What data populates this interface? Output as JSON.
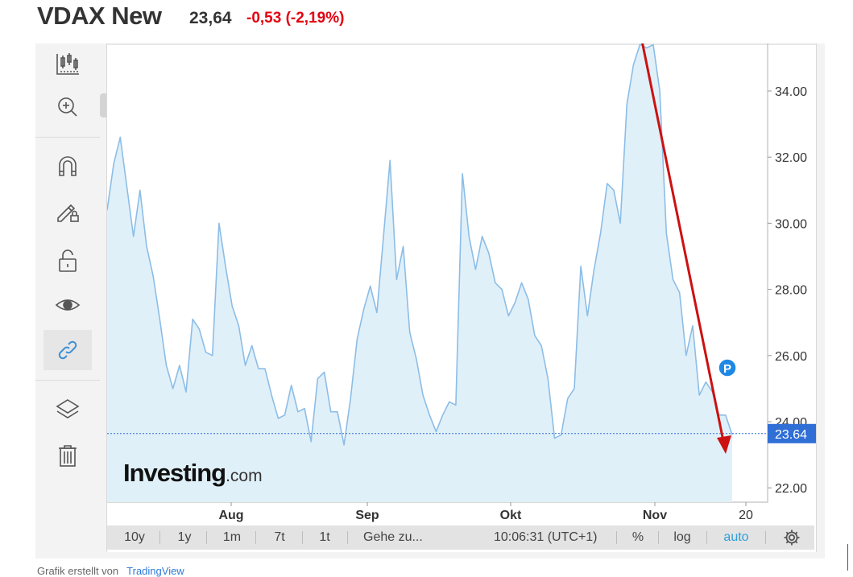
{
  "header": {
    "title": "VDAX New",
    "price": "23,64",
    "change": "-0,53 (-2,19%)",
    "change_color": "#e3000f"
  },
  "toolbar": {
    "tools": [
      {
        "name": "candlestick-chart-icon"
      },
      {
        "name": "zoom-icon"
      },
      {
        "name": "magnet-icon"
      },
      {
        "name": "pencil-lock-icon"
      },
      {
        "name": "unlock-icon"
      },
      {
        "name": "eye-icon"
      },
      {
        "name": "link-icon",
        "active": true
      },
      {
        "name": "layers-icon"
      },
      {
        "name": "trash-icon"
      }
    ]
  },
  "chart_data": {
    "type": "area",
    "x_ticks": [
      "Aug",
      "Sep",
      "Okt",
      "Nov",
      "20"
    ],
    "y_ticks": [
      "34.00",
      "32.00",
      "30.00",
      "28.00",
      "26.00",
      "24.00",
      "22.00"
    ],
    "ylim": [
      21.6,
      35.3
    ],
    "y_axis_position": "right",
    "grid": false,
    "current_value": 23.64,
    "current_label": "23.64",
    "watermark": "Investing",
    "watermark_suffix": ".com",
    "marker_label": "P",
    "line_color": "#8cbde6",
    "fill_color": "#e0f0f9",
    "current_color": "#2f6fd6",
    "arrow_color": "#cc1111",
    "values": [
      30.4,
      31.8,
      32.6,
      31.1,
      29.6,
      31.0,
      29.3,
      28.4,
      27.1,
      25.7,
      25.0,
      25.7,
      24.9,
      27.1,
      26.8,
      26.1,
      26.0,
      30.0,
      28.7,
      27.5,
      26.9,
      25.7,
      26.3,
      25.6,
      25.6,
      24.8,
      24.1,
      24.2,
      25.1,
      24.3,
      24.4,
      23.4,
      25.3,
      25.5,
      24.3,
      24.3,
      23.3,
      24.7,
      26.5,
      27.4,
      28.1,
      27.3,
      29.6,
      31.9,
      28.3,
      29.3,
      26.7,
      25.9,
      24.8,
      24.2,
      23.7,
      24.2,
      24.6,
      24.5,
      31.5,
      29.6,
      28.6,
      29.6,
      29.1,
      28.2,
      28.0,
      27.2,
      27.6,
      28.2,
      27.7,
      26.6,
      26.3,
      25.3,
      23.5,
      23.6,
      24.7,
      25.0,
      28.7,
      27.2,
      28.6,
      29.7,
      31.2,
      31.0,
      30.0,
      33.6,
      34.8,
      35.6,
      35.3,
      35.4,
      34.0,
      29.7,
      28.3,
      27.9,
      26.0,
      26.9,
      24.8,
      25.2,
      24.9,
      24.2,
      24.2,
      23.6
    ]
  },
  "bottombar": {
    "ranges": [
      "10y",
      "1y",
      "1m",
      "7t",
      "1t"
    ],
    "goto": "Gehe zu...",
    "time": "10:06:31 (UTC+1)",
    "percent": "%",
    "log": "log",
    "auto": "auto"
  },
  "footer": {
    "text": "Grafik erstellt von",
    "link": "TradingView"
  }
}
